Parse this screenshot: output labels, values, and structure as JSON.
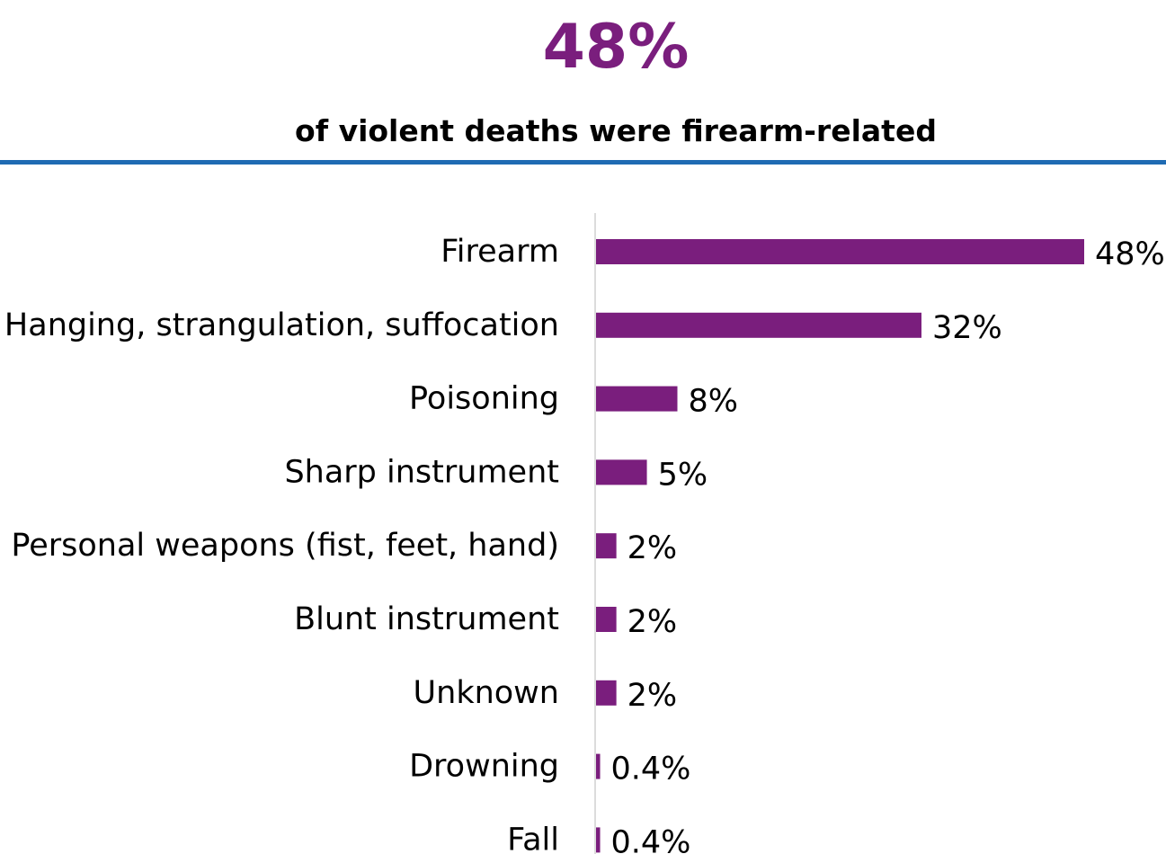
{
  "headline": {
    "value": "48%",
    "subtitle": "of violent deaths were firearm-related"
  },
  "colors": {
    "accent": "#7a1e7d",
    "rule": "#1f6bb3",
    "axis": "#d0d0d0"
  },
  "chart_data": {
    "type": "bar",
    "orientation": "horizontal",
    "categories": [
      "Firearm",
      "Hanging, strangulation, suffocation",
      "Poisoning",
      "Sharp instrument",
      "Personal weapons (fist, feet, hand)",
      "Blunt instrument",
      "Unknown",
      "Drowning",
      "Fall"
    ],
    "values": [
      48,
      32,
      8,
      5,
      2,
      2,
      2,
      0.4,
      0.4
    ],
    "value_labels": [
      "48%",
      "32%",
      "8%",
      "5%",
      "2%",
      "2%",
      "2%",
      "0.4%",
      "0.4%"
    ],
    "unit": "%",
    "xlim": [
      0,
      48
    ],
    "grid": false,
    "legend": "none"
  }
}
